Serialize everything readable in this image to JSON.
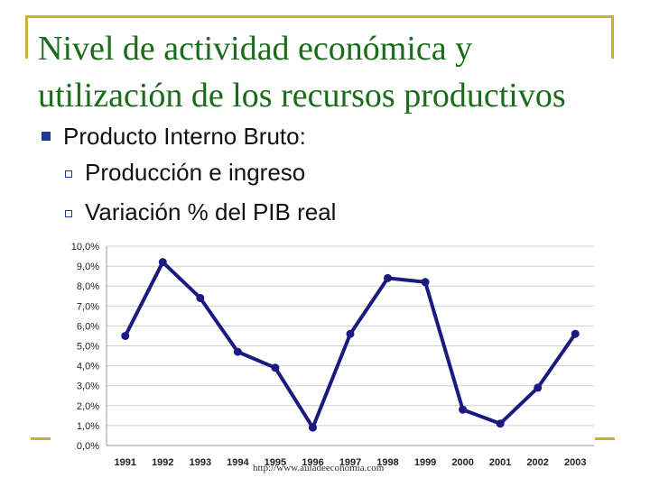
{
  "slide": {
    "title": "Nivel de actividad económica y utilización de los recursos productivos",
    "bullet": "Producto Interno Bruto:",
    "subbullets": [
      "Producción e ingreso",
      "Variación % del PIB real"
    ],
    "source": "http://www.auladeeconomia.com"
  },
  "colors": {
    "title": "#1a6b1a",
    "line": "#1a1a80",
    "accent": "#c8b233",
    "bullet": "#1a3a99"
  },
  "chart_data": {
    "type": "line",
    "categories": [
      "1991",
      "1992",
      "1993",
      "1994",
      "1995",
      "1996",
      "1997",
      "1998",
      "1999",
      "2000",
      "2001",
      "2002",
      "2003"
    ],
    "series": [
      {
        "values": [
          5.5,
          9.2,
          7.4,
          4.7,
          3.9,
          0.9,
          5.6,
          8.4,
          8.2,
          1.8,
          1.1,
          2.9,
          5.6
        ]
      }
    ],
    "yticks": [
      "0,0%",
      "1,0%",
      "2,0%",
      "3,0%",
      "4,0%",
      "5,0%",
      "6,0%",
      "7,0%",
      "8,0%",
      "9,0%",
      "10,0%"
    ],
    "ylim": [
      0,
      10
    ],
    "grid": true,
    "legend": "none",
    "title": "",
    "xlabel": "",
    "ylabel": ""
  }
}
